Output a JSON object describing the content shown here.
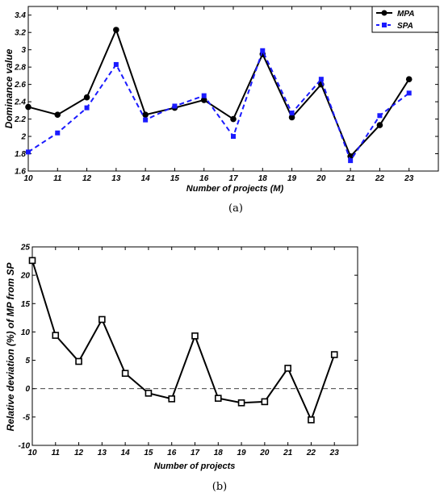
{
  "chart_data": [
    {
      "type": "line",
      "caption": "(a)",
      "xlabel": "Number of projects (M)",
      "ylabel": "Dominance value",
      "x": [
        10,
        11,
        12,
        13,
        14,
        15,
        16,
        17,
        18,
        19,
        20,
        21,
        22,
        23
      ],
      "xlim": [
        10,
        24
      ],
      "ylim": [
        1.6,
        3.5
      ],
      "yticks": [
        1.6,
        1.8,
        2,
        2.2,
        2.4,
        2.6,
        2.8,
        3,
        3.2,
        3.4
      ],
      "legend": "top-right",
      "grid": false,
      "series": [
        {
          "name": "MPA",
          "color": "#000000",
          "style": "solid",
          "marker": "circle",
          "values": [
            2.34,
            2.25,
            2.45,
            3.23,
            2.25,
            2.33,
            2.42,
            2.2,
            2.95,
            2.22,
            2.6,
            1.77,
            2.13,
            2.66
          ]
        },
        {
          "name": "SPA",
          "color": "#1a1aff",
          "style": "dashed",
          "marker": "square",
          "values": [
            1.82,
            2.04,
            2.33,
            2.83,
            2.19,
            2.35,
            2.47,
            2.0,
            2.99,
            2.27,
            2.66,
            1.72,
            2.24,
            2.5
          ]
        }
      ]
    },
    {
      "type": "line",
      "caption": "(b)",
      "xlabel": "Number of projects",
      "ylabel": "Relative deviation (%) of MP from SP",
      "x": [
        10,
        11,
        12,
        13,
        14,
        15,
        16,
        17,
        18,
        19,
        20,
        21,
        22,
        23
      ],
      "xlim": [
        10,
        24
      ],
      "ylim": [
        -10,
        25
      ],
      "yticks": [
        -10,
        -5,
        0,
        5,
        10,
        15,
        20,
        25
      ],
      "grid": false,
      "reference_line": 0,
      "series": [
        {
          "color": "#000000",
          "style": "solid",
          "marker": "square-open",
          "values": [
            22.6,
            9.4,
            4.8,
            12.2,
            2.7,
            -0.8,
            -1.8,
            9.3,
            -1.7,
            -2.5,
            -2.3,
            3.6,
            -5.5,
            6.0
          ]
        }
      ]
    }
  ]
}
